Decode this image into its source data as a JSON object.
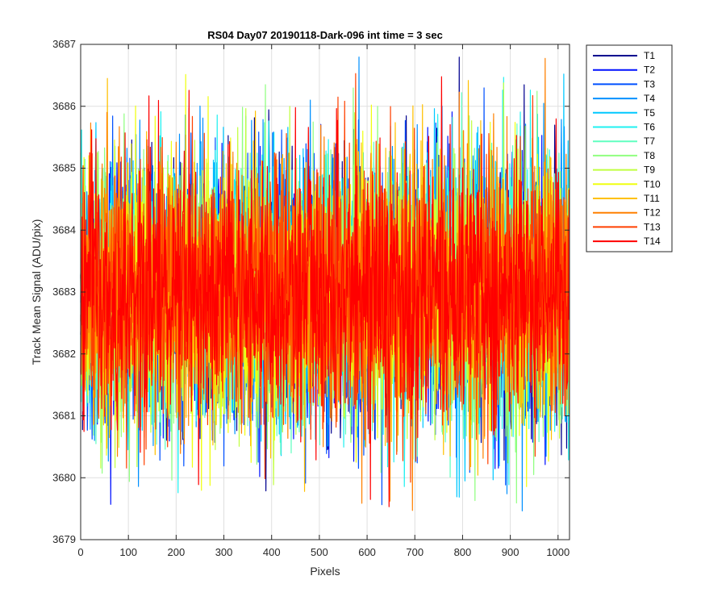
{
  "chart_data": {
    "type": "line",
    "title": "RS04 Day07 20190118-Dark-096 int time = 3 sec",
    "xlabel": "Pixels",
    "ylabel": "Track Mean Signal (ADU/pix)",
    "xlim": [
      0,
      1024
    ],
    "ylim": [
      3679,
      3687
    ],
    "xticks": [
      0,
      100,
      200,
      300,
      400,
      500,
      600,
      700,
      800,
      900,
      1000
    ],
    "yticks": [
      3679,
      3680,
      3681,
      3682,
      3683,
      3684,
      3685,
      3686,
      3687
    ],
    "grid": true,
    "legend_position": "outside-top-right",
    "noise_model": {
      "points_per_series": 1024,
      "mean": 3683.0,
      "std": 1.05
    },
    "series": [
      {
        "name": "T1",
        "color": "#00008f"
      },
      {
        "name": "T2",
        "color": "#0010ff"
      },
      {
        "name": "T3",
        "color": "#0050ff"
      },
      {
        "name": "T4",
        "color": "#0090ff"
      },
      {
        "name": "T5",
        "color": "#00c8ff"
      },
      {
        "name": "T6",
        "color": "#20f0f0"
      },
      {
        "name": "T7",
        "color": "#60ffc0"
      },
      {
        "name": "T8",
        "color": "#90ff80"
      },
      {
        "name": "T9",
        "color": "#c0ff40"
      },
      {
        "name": "T10",
        "color": "#f0ff10"
      },
      {
        "name": "T11",
        "color": "#ffc000"
      },
      {
        "name": "T12",
        "color": "#ff8000"
      },
      {
        "name": "T13",
        "color": "#ff4000"
      },
      {
        "name": "T14",
        "color": "#ff0000"
      }
    ]
  }
}
